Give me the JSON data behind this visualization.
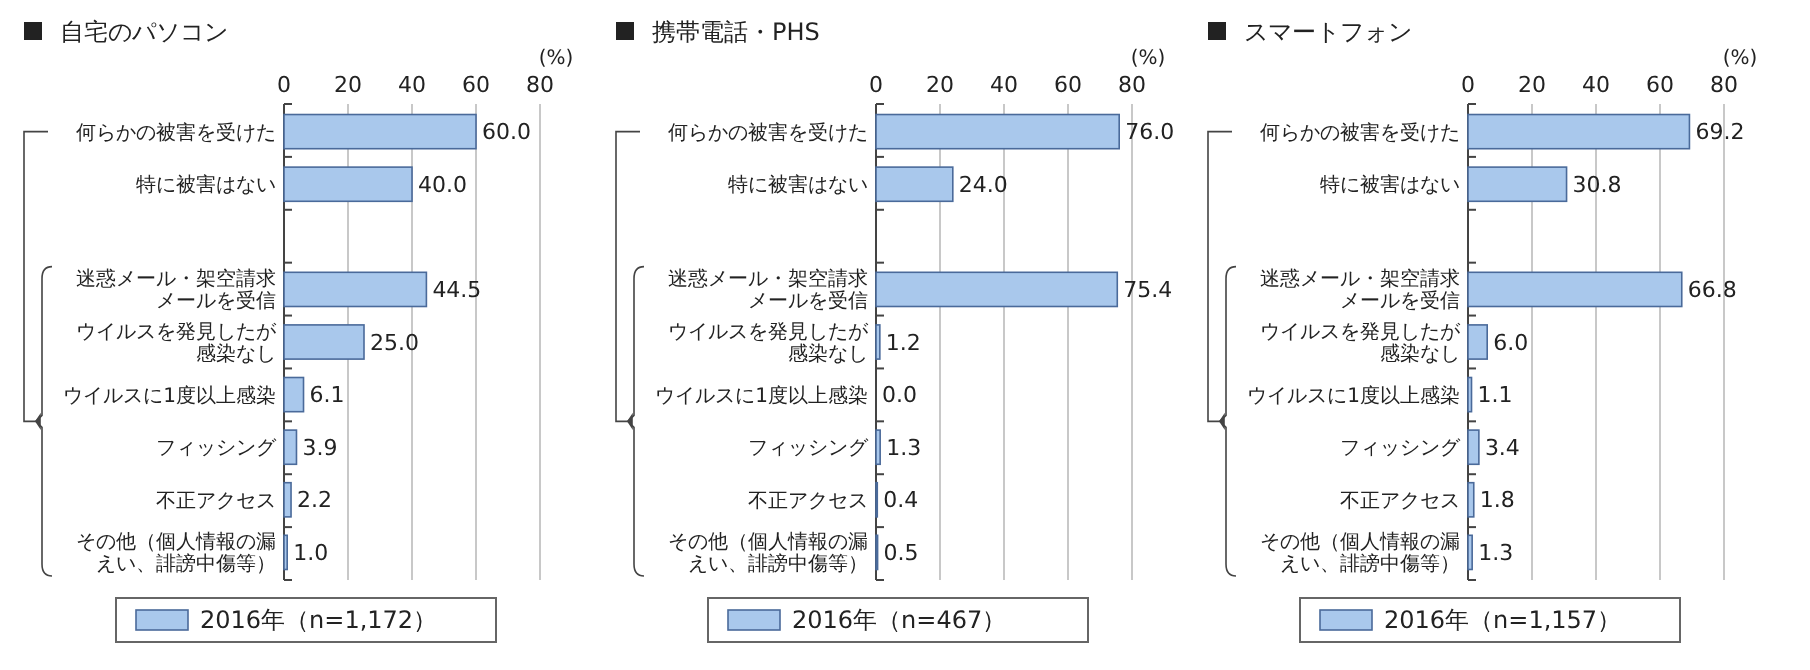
{
  "chart_data": [
    {
      "type": "bar",
      "orientation": "horizontal",
      "title": "自宅のパソコン",
      "xlabel": "(%)",
      "categories": [
        "何らかの被害を受けた",
        "特に被害はない",
        null,
        "迷惑メール・架空請求メールを受信",
        "ウイルスを発見したが感染なし",
        "ウイルスに1度以上感染",
        "フィッシング",
        "不正アクセス",
        "その他（個人情報の漏えい、誹謗中傷等）"
      ],
      "series": [
        {
          "name": "2016年（n=1,172）",
          "color": "#a9c8ec",
          "values": [
            60.0,
            40.0,
            null,
            44.5,
            25.0,
            6.1,
            3.9,
            2.2,
            1.0
          ],
          "value_labels": [
            "60.0",
            "40.0",
            null,
            "44.5",
            "25.0",
            "6.1",
            "3.9",
            "2.2",
            "1.0"
          ]
        }
      ],
      "xlim": [
        0,
        80
      ],
      "xticks": [
        0,
        20,
        40,
        60,
        80
      ],
      "grid": "x",
      "legend": "bottom"
    },
    {
      "type": "bar",
      "orientation": "horizontal",
      "title": "携帯電話・PHS",
      "xlabel": "(%)",
      "categories": [
        "何らかの被害を受けた",
        "特に被害はない",
        null,
        "迷惑メール・架空請求メールを受信",
        "ウイルスを発見したが感染なし",
        "ウイルスに1度以上感染",
        "フィッシング",
        "不正アクセス",
        "その他（個人情報の漏えい、誹謗中傷等）"
      ],
      "series": [
        {
          "name": "2016年（n=467）",
          "color": "#a9c8ec",
          "values": [
            76.0,
            24.0,
            null,
            75.4,
            1.2,
            0.0,
            1.3,
            0.4,
            0.5
          ],
          "value_labels": [
            "76.0",
            "24.0",
            null,
            "75.4",
            "1.2",
            "0.0",
            "1.3",
            "0.4",
            "0.5"
          ]
        }
      ],
      "xlim": [
        0,
        80
      ],
      "xticks": [
        0,
        20,
        40,
        60,
        80
      ],
      "grid": "x",
      "legend": "bottom"
    },
    {
      "type": "bar",
      "orientation": "horizontal",
      "title": "スマートフォン",
      "xlabel": "(%)",
      "categories": [
        "何らかの被害を受けた",
        "特に被害はない",
        null,
        "迷惑メール・架空請求メールを受信",
        "ウイルスを発見したが感染なし",
        "ウイルスに1度以上感染",
        "フィッシング",
        "不正アクセス",
        "その他（個人情報の漏えい、誹謗中傷等）"
      ],
      "series": [
        {
          "name": "2016年（n=1,157）",
          "color": "#a9c8ec",
          "values": [
            69.2,
            30.8,
            null,
            66.8,
            6.0,
            1.1,
            3.4,
            1.8,
            1.3
          ],
          "value_labels": [
            "69.2",
            "30.8",
            null,
            "66.8",
            "6.0",
            "1.1",
            "3.4",
            "1.8",
            "1.3"
          ]
        }
      ],
      "xlim": [
        0,
        80
      ],
      "xticks": [
        0,
        20,
        40,
        60,
        80
      ],
      "grid": "x",
      "legend": "bottom"
    }
  ]
}
